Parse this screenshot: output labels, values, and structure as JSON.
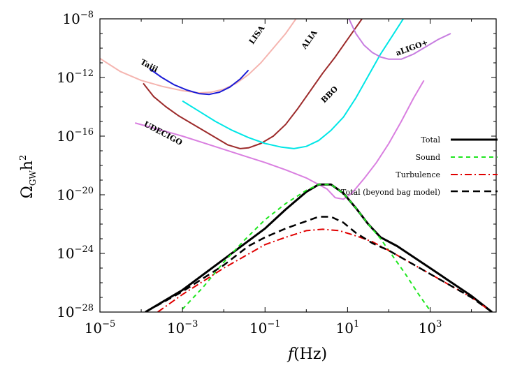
{
  "chart_data": {
    "type": "line",
    "xscale": "log",
    "yscale": "log",
    "xlim_exp": [
      -5,
      4.6
    ],
    "ylim_exp": [
      -28,
      -8
    ],
    "x_ticks": [
      {
        "base": "10",
        "exp": "−5"
      },
      {
        "base": "10",
        "exp": "−3"
      },
      {
        "base": "10",
        "exp": "−1"
      },
      {
        "base": "10",
        "exp": "1"
      },
      {
        "base": "10",
        "exp": "3"
      }
    ],
    "y_ticks": [
      {
        "base": "10",
        "exp": "−28"
      },
      {
        "base": "10",
        "exp": "−24"
      },
      {
        "base": "10",
        "exp": "−20"
      },
      {
        "base": "10",
        "exp": "−16"
      },
      {
        "base": "10",
        "exp": "−12"
      },
      {
        "base": "10",
        "exp": "−8"
      }
    ],
    "xlabel": {
      "italic": "f",
      "rest": "(Hz)"
    },
    "ylabel": {
      "main": "Ω",
      "sub": "GW",
      "rest": "h",
      "sup": "2"
    },
    "detectors": [
      {
        "name": "LISA",
        "color": "#f5b5b0",
        "label": "LISA",
        "points": [
          [
            -5,
            -10.7
          ],
          [
            -4.5,
            -11.6
          ],
          [
            -4,
            -12.2
          ],
          [
            -3.5,
            -12.6
          ],
          [
            -3,
            -12.9
          ],
          [
            -2.6,
            -13.05
          ],
          [
            -2.3,
            -13.0
          ],
          [
            -2,
            -12.8
          ],
          [
            -1.7,
            -12.4
          ],
          [
            -1.4,
            -11.8
          ],
          [
            -1.1,
            -11.0
          ],
          [
            -0.8,
            -10.0
          ],
          [
            -0.5,
            -9.0
          ],
          [
            -0.25,
            -8.0
          ]
        ]
      },
      {
        "name": "Taiji",
        "color": "#1a1ad6",
        "label": "Taiji",
        "points": [
          [
            -3.8,
            -11.4
          ],
          [
            -3.5,
            -12.0
          ],
          [
            -3.2,
            -12.5
          ],
          [
            -2.9,
            -12.85
          ],
          [
            -2.6,
            -13.1
          ],
          [
            -2.35,
            -13.15
          ],
          [
            -2.1,
            -13.0
          ],
          [
            -1.85,
            -12.65
          ],
          [
            -1.6,
            -12.1
          ],
          [
            -1.4,
            -11.5
          ]
        ]
      },
      {
        "name": "ALIA",
        "color": "#9c2a2a",
        "label": "ALIA",
        "points": [
          [
            -3.95,
            -12.4
          ],
          [
            -3.7,
            -13.3
          ],
          [
            -3.4,
            -14.0
          ],
          [
            -3.1,
            -14.6
          ],
          [
            -2.8,
            -15.1
          ],
          [
            -2.5,
            -15.6
          ],
          [
            -2.2,
            -16.1
          ],
          [
            -1.9,
            -16.6
          ],
          [
            -1.6,
            -16.85
          ],
          [
            -1.4,
            -16.8
          ],
          [
            -1.1,
            -16.5
          ],
          [
            -0.8,
            -16.0
          ],
          [
            -0.5,
            -15.2
          ],
          [
            -0.2,
            -14.1
          ],
          [
            0.1,
            -12.9
          ],
          [
            0.4,
            -11.7
          ],
          [
            0.7,
            -10.6
          ],
          [
            0.95,
            -9.6
          ],
          [
            1.15,
            -8.8
          ],
          [
            1.35,
            -8.0
          ]
        ]
      },
      {
        "name": "BBO",
        "color": "#00e6e6",
        "label": "BBO",
        "points": [
          [
            -3,
            -13.6
          ],
          [
            -2.6,
            -14.3
          ],
          [
            -2.2,
            -15.0
          ],
          [
            -1.8,
            -15.6
          ],
          [
            -1.4,
            -16.1
          ],
          [
            -1.0,
            -16.5
          ],
          [
            -0.6,
            -16.75
          ],
          [
            -0.3,
            -16.85
          ],
          [
            0,
            -16.7
          ],
          [
            0.3,
            -16.3
          ],
          [
            0.6,
            -15.6
          ],
          [
            0.9,
            -14.7
          ],
          [
            1.2,
            -13.4
          ],
          [
            1.5,
            -11.9
          ],
          [
            1.8,
            -10.4
          ],
          [
            2.1,
            -9.1
          ],
          [
            2.35,
            -8.0
          ]
        ]
      },
      {
        "name": "UDECIGO",
        "color": "#d97fe0",
        "label": "UDECIGO",
        "points": [
          [
            -4.15,
            -15.1
          ],
          [
            -3.5,
            -15.6
          ],
          [
            -3,
            -16.0
          ],
          [
            -2.5,
            -16.45
          ],
          [
            -2,
            -16.9
          ],
          [
            -1.5,
            -17.35
          ],
          [
            -1,
            -17.8
          ],
          [
            -0.5,
            -18.3
          ],
          [
            0,
            -18.85
          ],
          [
            0.5,
            -19.6
          ],
          [
            0.7,
            -20.2
          ],
          [
            0.9,
            -20.3
          ],
          [
            1.1,
            -19.9
          ],
          [
            1.4,
            -18.9
          ],
          [
            1.7,
            -17.8
          ],
          [
            2.0,
            -16.5
          ],
          [
            2.3,
            -15.0
          ],
          [
            2.6,
            -13.4
          ],
          [
            2.85,
            -12.2
          ]
        ]
      },
      {
        "name": "aLIGO+",
        "color": "#c77de0",
        "label": "aLIGO+",
        "points": [
          [
            1.0,
            -7.8
          ],
          [
            1.2,
            -9.0
          ],
          [
            1.4,
            -9.8
          ],
          [
            1.6,
            -10.3
          ],
          [
            1.8,
            -10.6
          ],
          [
            2.0,
            -10.75
          ],
          [
            2.3,
            -10.75
          ],
          [
            2.6,
            -10.4
          ],
          [
            2.9,
            -9.9
          ],
          [
            3.2,
            -9.4
          ],
          [
            3.5,
            -9.0
          ]
        ]
      }
    ],
    "series": [
      {
        "name": "Total",
        "color": "#000000",
        "width": 3,
        "dash": "",
        "points": [
          [
            -3.9,
            -28
          ],
          [
            -3,
            -26.5
          ],
          [
            -2,
            -24.4
          ],
          [
            -1,
            -22.3
          ],
          [
            -0.5,
            -21.0
          ],
          [
            0,
            -19.8
          ],
          [
            0.3,
            -19.3
          ],
          [
            0.6,
            -19.3
          ],
          [
            0.9,
            -19.9
          ],
          [
            1.2,
            -20.9
          ],
          [
            1.5,
            -22.0
          ],
          [
            1.8,
            -22.9
          ],
          [
            2.2,
            -23.5
          ],
          [
            3,
            -25.0
          ],
          [
            4,
            -26.9
          ],
          [
            4.5,
            -28
          ]
        ]
      },
      {
        "name": "Sound",
        "color": "#1ee61e",
        "width": 2,
        "dash": "6,5",
        "points": [
          [
            -3,
            -27.8
          ],
          [
            -2.5,
            -26.3
          ],
          [
            -2,
            -24.6
          ],
          [
            -1.5,
            -23.1
          ],
          [
            -1,
            -21.7
          ],
          [
            -0.5,
            -20.6
          ],
          [
            0,
            -19.7
          ],
          [
            0.3,
            -19.3
          ],
          [
            0.6,
            -19.3
          ],
          [
            0.9,
            -19.9
          ],
          [
            1.2,
            -20.9
          ],
          [
            1.5,
            -22.0
          ],
          [
            1.8,
            -23.0
          ],
          [
            2.1,
            -24.2
          ],
          [
            2.4,
            -25.4
          ],
          [
            2.7,
            -26.7
          ],
          [
            3.0,
            -27.9
          ]
        ]
      },
      {
        "name": "Turbulence",
        "color": "#e00000",
        "width": 2,
        "dash": "10,4,2,4",
        "points": [
          [
            -3.6,
            -28
          ],
          [
            -3,
            -26.8
          ],
          [
            -2,
            -25.0
          ],
          [
            -1,
            -23.4
          ],
          [
            -0.5,
            -22.9
          ],
          [
            0,
            -22.45
          ],
          [
            0.4,
            -22.35
          ],
          [
            0.8,
            -22.45
          ],
          [
            1.2,
            -22.8
          ],
          [
            1.6,
            -23.2
          ],
          [
            2,
            -23.8
          ],
          [
            3,
            -25.4
          ],
          [
            4,
            -27.0
          ],
          [
            4.5,
            -28
          ]
        ]
      },
      {
        "name": "Total (beyond bag model)",
        "color": "#000000",
        "width": 2.5,
        "dash": "10,6",
        "points": [
          [
            -3.9,
            -28
          ],
          [
            -3,
            -26.6
          ],
          [
            -2,
            -24.8
          ],
          [
            -1.4,
            -23.5
          ],
          [
            -1,
            -22.9
          ],
          [
            -0.5,
            -22.3
          ],
          [
            0,
            -21.8
          ],
          [
            0.3,
            -21.5
          ],
          [
            0.6,
            -21.5
          ],
          [
            0.9,
            -21.9
          ],
          [
            1.2,
            -22.6
          ],
          [
            1.6,
            -23.3
          ],
          [
            2,
            -23.8
          ],
          [
            3,
            -25.4
          ],
          [
            4,
            -27.0
          ],
          [
            4.5,
            -28
          ]
        ]
      }
    ],
    "legend": [
      {
        "label": "Total"
      },
      {
        "label": "Sound"
      },
      {
        "label": "Turbulence"
      },
      {
        "label": "Total (beyond bag model)"
      }
    ]
  }
}
